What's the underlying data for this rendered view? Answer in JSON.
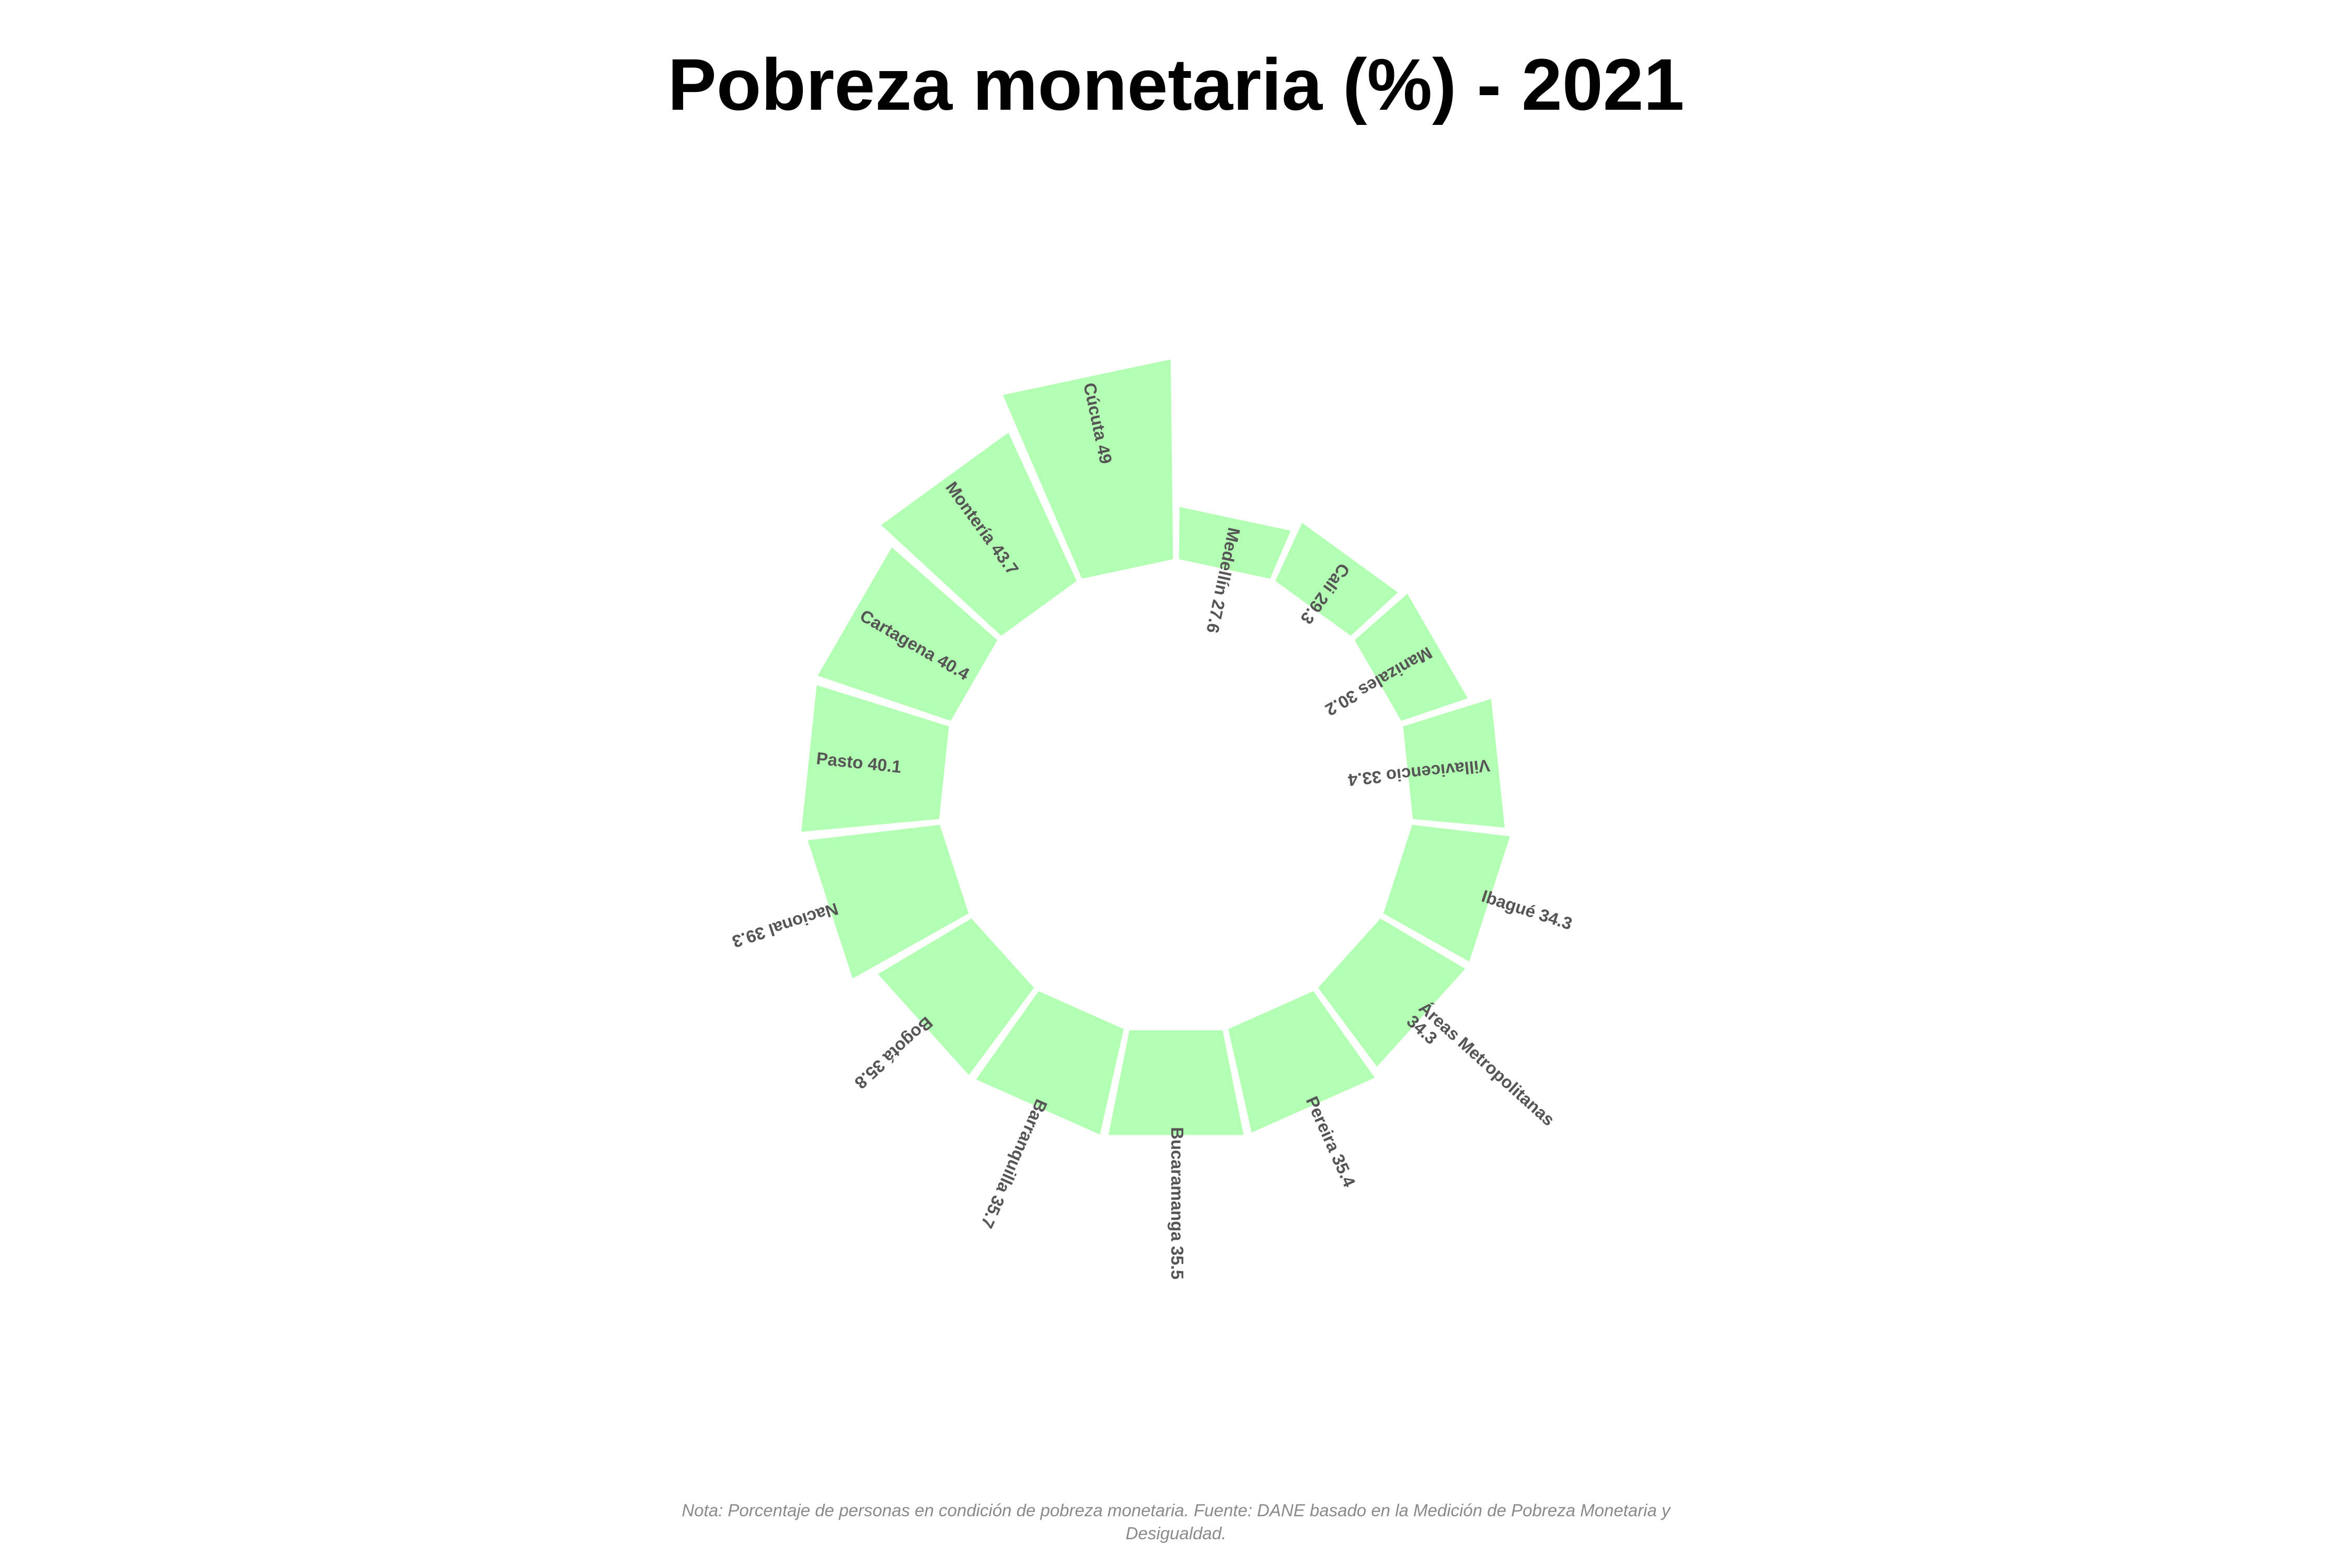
{
  "chart_data": {
    "type": "radial_bar",
    "title": "Pobreza monetaria (%) - 2021",
    "note": "Nota: Porcentaje de personas en condición de pobreza monetaria. Fuente: DANE basado en la Medición de Pobreza Monetaria y Desigualdad.",
    "bar_color": "#b3ffb3",
    "label_color": "#555555",
    "categories": [
      "Medellín",
      "Cali",
      "Manizales",
      "Villavicencio",
      "Ibagué",
      "Áreas Metropolitanas",
      "Pereira",
      "Bucaramanga",
      "Barranquilla",
      "Bogotá",
      "Nacional",
      "Pasto",
      "Cartagena",
      "Montería",
      "Cúcuta"
    ],
    "values": [
      27.6,
      29.3,
      30.2,
      33.4,
      34.3,
      34.3,
      35.4,
      35.5,
      35.7,
      35.8,
      39.3,
      40.1,
      40.4,
      43.7,
      49
    ],
    "labels": [
      [
        "Medellín 27.6"
      ],
      [
        "Cali 29.3"
      ],
      [
        "Manizales 30.2"
      ],
      [
        "Villavicencio 33.4"
      ],
      [
        "Ibagué 34.3"
      ],
      [
        "Áreas Metropolitanas",
        "34.3"
      ],
      [
        "Pereira 35.4"
      ],
      [
        "Bucaramanga 35.5"
      ],
      [
        "Barranquilla 35.7"
      ],
      [
        "Bogotá 35.8"
      ],
      [
        "Nacional 39.3"
      ],
      [
        "Pasto 40.1"
      ],
      [
        "Cartagena 40.4"
      ],
      [
        "Montería 43.7"
      ],
      [
        "Cúcuta 49"
      ]
    ]
  }
}
